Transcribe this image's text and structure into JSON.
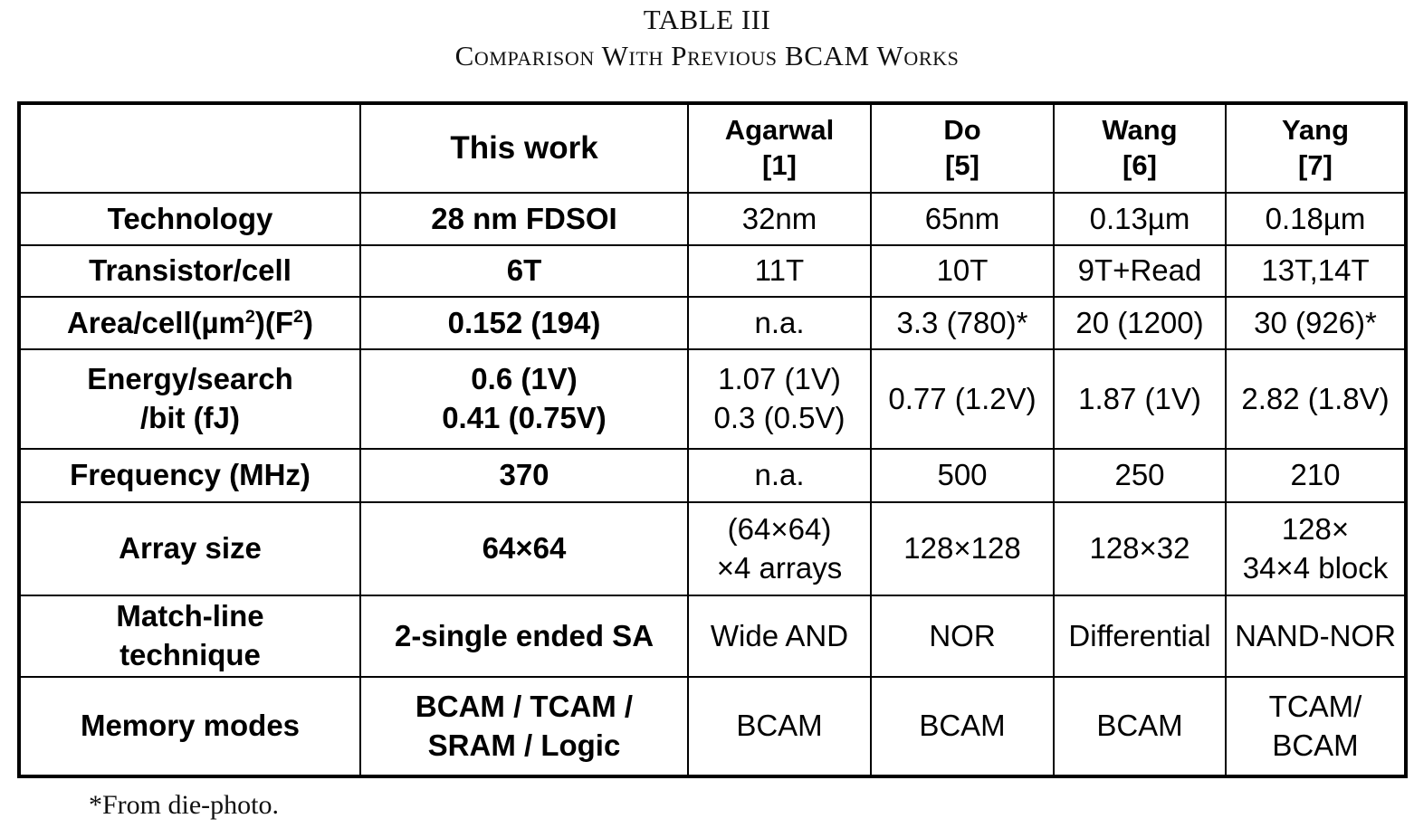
{
  "caption": {
    "label": "TABLE III",
    "title": "Comparison With Previous BCAM Works"
  },
  "table": {
    "headers": [
      {
        "line1": "",
        "line2": ""
      },
      {
        "line1": "This work",
        "line2": ""
      },
      {
        "line1": "Agarwal",
        "line2": "[1]"
      },
      {
        "line1": "Do",
        "line2": "[5]"
      },
      {
        "line1": "Wang",
        "line2": "[6]"
      },
      {
        "line1": "Yang",
        "line2": "[7]"
      }
    ],
    "rows": [
      {
        "label": {
          "line1": "Technology",
          "line2": ""
        },
        "cells": [
          {
            "line1": "28 nm FDSOI",
            "line2": ""
          },
          {
            "line1": "32nm",
            "line2": ""
          },
          {
            "line1": "65nm",
            "line2": ""
          },
          {
            "line1": "0.13µm",
            "line2": ""
          },
          {
            "line1": "0.18µm",
            "line2": ""
          }
        ]
      },
      {
        "label": {
          "line1": "Transistor/cell",
          "line2": ""
        },
        "cells": [
          {
            "line1": "6T",
            "line2": ""
          },
          {
            "line1": "11T",
            "line2": ""
          },
          {
            "line1": "10T",
            "line2": ""
          },
          {
            "line1": "9T+Read",
            "line2": ""
          },
          {
            "line1": "13T,14T",
            "line2": ""
          }
        ]
      },
      {
        "label": {
          "pre": "Area/cell(µm",
          "sup1": "2",
          "mid": ")(F",
          "sup2": "2",
          "post": ")"
        },
        "cells": [
          {
            "line1": "0.152 (194)",
            "line2": ""
          },
          {
            "line1": "n.a.",
            "line2": ""
          },
          {
            "line1": "3.3 (780)*",
            "line2": ""
          },
          {
            "line1": "20 (1200)",
            "line2": ""
          },
          {
            "line1": "30 (926)*",
            "line2": ""
          }
        ]
      },
      {
        "label": {
          "line1": "Energy/search",
          "line2": "/bit (fJ)"
        },
        "cells": [
          {
            "line1": "0.6 (1V)",
            "line2": "0.41 (0.75V)"
          },
          {
            "line1": "1.07 (1V)",
            "line2": "0.3 (0.5V)"
          },
          {
            "line1": "0.77 (1.2V)",
            "line2": ""
          },
          {
            "line1": "1.87 (1V)",
            "line2": ""
          },
          {
            "line1": "2.82 (1.8V)",
            "line2": ""
          }
        ]
      },
      {
        "label": {
          "line1": "Frequency (MHz)",
          "line2": ""
        },
        "cells": [
          {
            "line1": "370",
            "line2": ""
          },
          {
            "line1": "n.a.",
            "line2": ""
          },
          {
            "line1": "500",
            "line2": ""
          },
          {
            "line1": "250",
            "line2": ""
          },
          {
            "line1": "210",
            "line2": ""
          }
        ]
      },
      {
        "label": {
          "line1": "Array size",
          "line2": ""
        },
        "cells": [
          {
            "line1": "64×64",
            "line2": ""
          },
          {
            "line1": "(64×64)",
            "line2": "×4 arrays"
          },
          {
            "line1": "128×128",
            "line2": ""
          },
          {
            "line1": "128×32",
            "line2": ""
          },
          {
            "line1": "128×",
            "line2": "34×4 block"
          }
        ]
      },
      {
        "label": {
          "line1": "Match-line",
          "line2": "technique"
        },
        "cells": [
          {
            "line1": "2-single ended SA",
            "line2": ""
          },
          {
            "line1": "Wide AND",
            "line2": ""
          },
          {
            "line1": "NOR",
            "line2": ""
          },
          {
            "line1": "Differential",
            "line2": ""
          },
          {
            "line1": "NAND-NOR",
            "line2": ""
          }
        ]
      },
      {
        "label": {
          "line1": "Memory modes",
          "line2": ""
        },
        "cells": [
          {
            "line1": "BCAM / TCAM /",
            "line2": "SRAM / Logic"
          },
          {
            "line1": "BCAM",
            "line2": ""
          },
          {
            "line1": "BCAM",
            "line2": ""
          },
          {
            "line1": "BCAM",
            "line2": ""
          },
          {
            "line1": "TCAM/",
            "line2": "BCAM"
          }
        ]
      }
    ]
  },
  "footnote": "*From die-photo."
}
